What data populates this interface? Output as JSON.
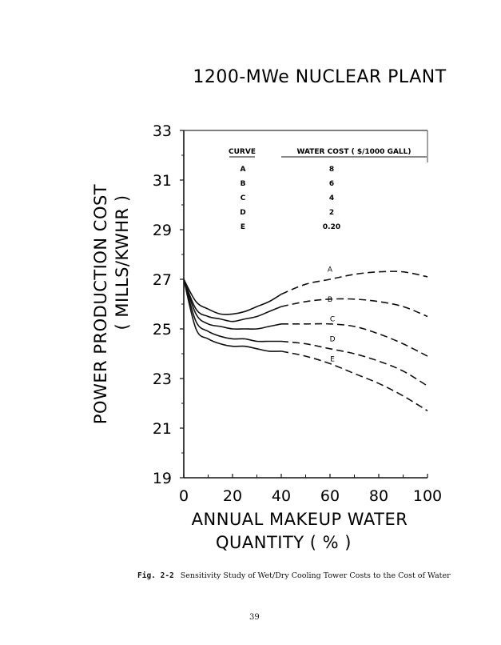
{
  "chart_data": {
    "type": "line",
    "title": "1200-MWe NUCLEAR PLANT",
    "xlabel": "ANNUAL MAKEUP WATER",
    "xlabel_line2": "QUANTITY ( % )",
    "ylabel": "POWER PRODUCTION COST",
    "ylabel_line2": "( MILLS/KWHR )",
    "xlim": [
      0,
      100
    ],
    "ylim": [
      19,
      33
    ],
    "x_ticks": [
      0,
      20,
      40,
      60,
      80,
      100
    ],
    "y_ticks": [
      19,
      21,
      23,
      25,
      27,
      29,
      31,
      33
    ],
    "legend": {
      "header_curve": "CURVE",
      "header_cost": "WATER COST ( $/1000 GALL)",
      "rows": [
        {
          "curve": "A",
          "cost": "8"
        },
        {
          "curve": "B",
          "cost": "6"
        },
        {
          "curve": "C",
          "cost": "4"
        },
        {
          "curve": "D",
          "cost": "2"
        },
        {
          "curve": "E",
          "cost": "0.20"
        }
      ]
    },
    "solid_until_x": 40,
    "series": [
      {
        "name": "A",
        "label_at": [
          60,
          27.3
        ],
        "x": [
          0,
          5,
          10,
          15,
          20,
          25,
          30,
          35,
          40,
          50,
          60,
          70,
          80,
          90,
          100
        ],
        "y": [
          27.0,
          26.1,
          25.8,
          25.6,
          25.6,
          25.7,
          25.9,
          26.1,
          26.4,
          26.8,
          27.0,
          27.2,
          27.3,
          27.3,
          27.1
        ]
      },
      {
        "name": "B",
        "label_at": [
          60,
          26.1
        ],
        "x": [
          0,
          5,
          10,
          15,
          20,
          25,
          30,
          35,
          40,
          50,
          60,
          70,
          80,
          90,
          100
        ],
        "y": [
          27.0,
          25.8,
          25.5,
          25.4,
          25.3,
          25.4,
          25.5,
          25.7,
          25.9,
          26.1,
          26.2,
          26.2,
          26.1,
          25.9,
          25.5
        ]
      },
      {
        "name": "C",
        "label_at": [
          61,
          25.3
        ],
        "x": [
          0,
          5,
          10,
          15,
          20,
          25,
          30,
          35,
          40,
          50,
          60,
          70,
          80,
          90,
          100
        ],
        "y": [
          27.0,
          25.6,
          25.2,
          25.1,
          25.0,
          25.0,
          25.0,
          25.1,
          25.2,
          25.2,
          25.2,
          25.1,
          24.8,
          24.4,
          23.9
        ]
      },
      {
        "name": "D",
        "label_at": [
          61,
          24.5
        ],
        "x": [
          0,
          5,
          10,
          15,
          20,
          25,
          30,
          35,
          40,
          50,
          60,
          70,
          80,
          90,
          100
        ],
        "y": [
          27.0,
          25.3,
          24.9,
          24.7,
          24.6,
          24.6,
          24.5,
          24.5,
          24.5,
          24.4,
          24.2,
          24.0,
          23.7,
          23.3,
          22.7
        ]
      },
      {
        "name": "E",
        "label_at": [
          61,
          23.7
        ],
        "x": [
          0,
          5,
          10,
          15,
          20,
          25,
          30,
          35,
          40,
          50,
          60,
          70,
          80,
          90,
          100
        ],
        "y": [
          27.0,
          25.0,
          24.6,
          24.4,
          24.3,
          24.3,
          24.2,
          24.1,
          24.1,
          23.9,
          23.6,
          23.2,
          22.8,
          22.3,
          21.7
        ]
      }
    ]
  },
  "caption": {
    "label": "Fig. 2-2",
    "text": "Sensitivity Study of Wet/Dry Cooling Tower Costs to the Cost of Water"
  },
  "page_number": "39"
}
